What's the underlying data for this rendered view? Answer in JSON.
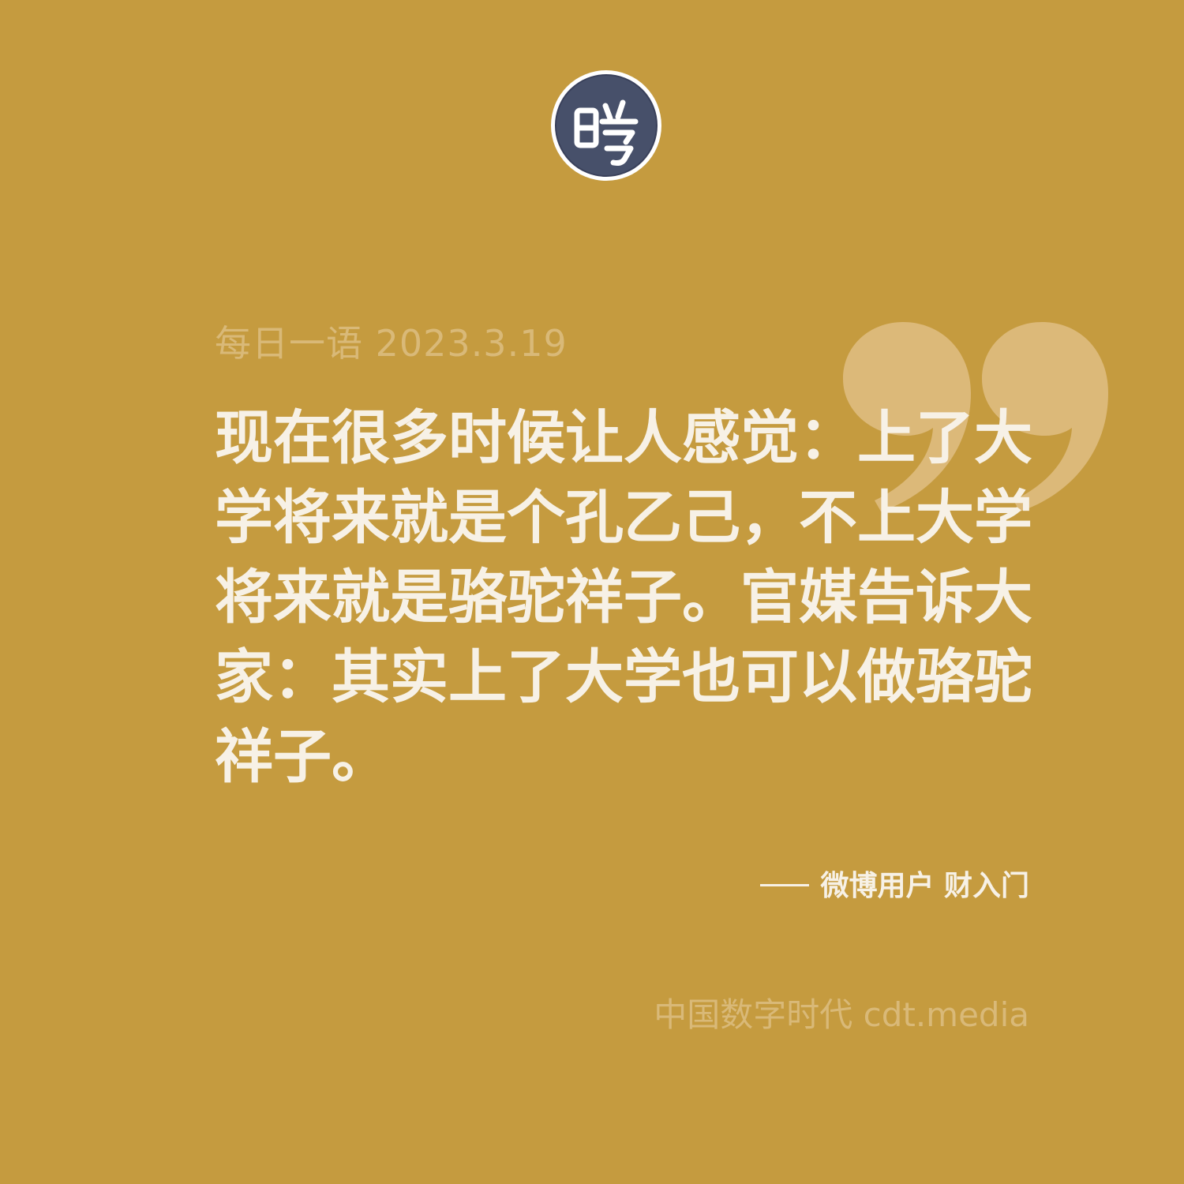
{
  "logo": {
    "icon": "seal-logo-icon",
    "background_color": "#47506a",
    "ring_color": "#ffffff"
  },
  "header": {
    "date_label": "每日一语 2023.3.19"
  },
  "quote": {
    "text": "现在很多时候让人感觉：上了大学将来就是个孔乙己，不上大学将来就是骆驼祥子。官媒告诉大家：其实上了大学也可以做骆驼祥子。",
    "mark_icon": "closing-quote-mark-icon"
  },
  "attribution": {
    "text": "微博用户 财入门"
  },
  "footer": {
    "text": "中国数字时代 cdt.media"
  },
  "colors": {
    "background": "#c59b3f",
    "text_primary": "#f7f1e6",
    "text_muted": "#d9b978",
    "quote_mark": "#dcb979"
  }
}
